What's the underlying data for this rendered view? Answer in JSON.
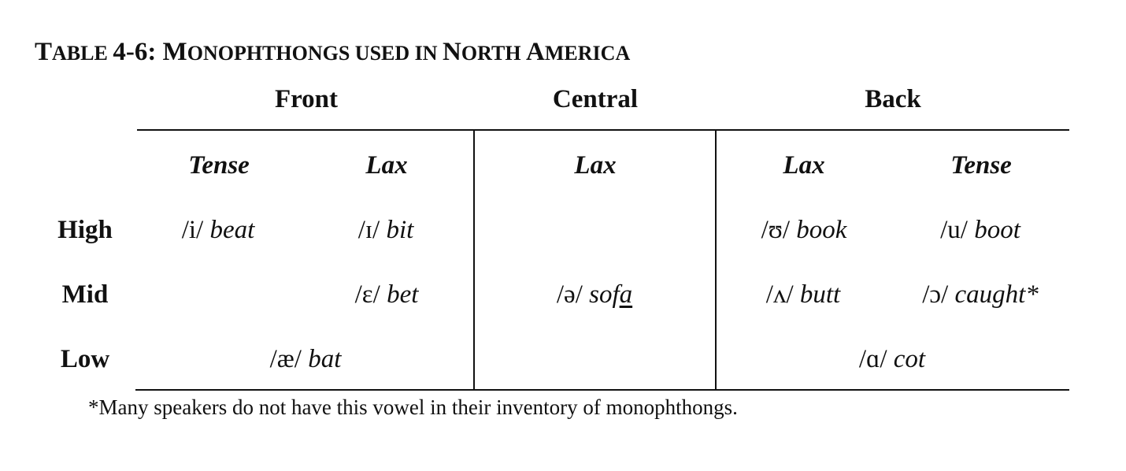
{
  "caption": {
    "parts": [
      "T",
      "ABLE ",
      "4-6: M",
      "ONOPHTHONGS USED IN ",
      "N",
      "ORTH ",
      "A",
      "MERICA"
    ]
  },
  "columns": {
    "front": "Front",
    "central": "Central",
    "back": "Back"
  },
  "subheaders": {
    "front_tense": "Tense",
    "front_lax": "Lax",
    "central_lax": "Lax",
    "back_lax": "Lax",
    "back_tense": "Tense"
  },
  "rows": {
    "high": "High",
    "mid": "Mid",
    "low": "Low"
  },
  "cells": {
    "high_front_tense": {
      "ipa": "/i/",
      "word": "beat"
    },
    "high_front_lax": {
      "ipa": "/ɪ/",
      "word": "bit"
    },
    "high_back_lax": {
      "ipa": "/ʊ/",
      "word": "book"
    },
    "high_back_tense": {
      "ipa": "/u/",
      "word": "boot"
    },
    "mid_front_lax": {
      "ipa": "/ɛ/",
      "word": "bet"
    },
    "mid_central_lax": {
      "ipa": "/ə/",
      "word_pre": "sof",
      "word_under": "a"
    },
    "mid_back_lax": {
      "ipa": "/ʌ/",
      "word": "butt"
    },
    "mid_back_tense": {
      "ipa": "/ɔ/",
      "word": "caught*"
    },
    "low_front": {
      "ipa": "/æ/",
      "word": "bat"
    },
    "low_back": {
      "ipa": "/ɑ/",
      "word": "cot"
    }
  },
  "footnote": "*Many speakers do not have this vowel in their inventory of monophthongs."
}
